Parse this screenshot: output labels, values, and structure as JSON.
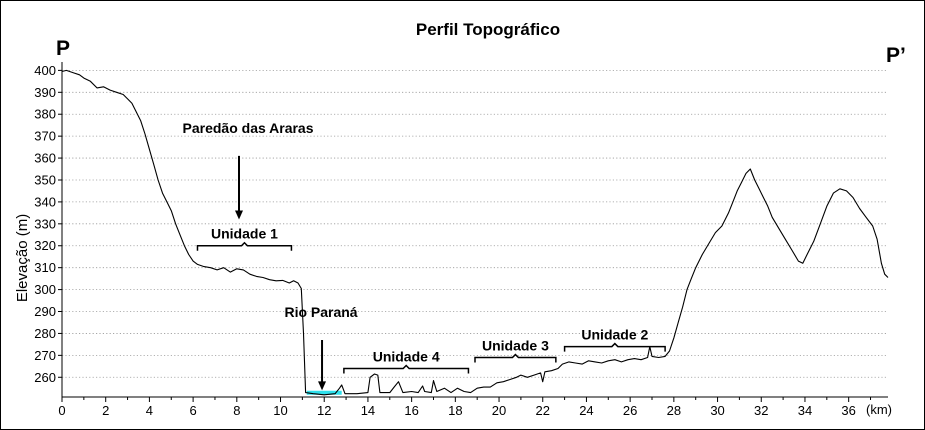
{
  "chart_data": {
    "type": "line",
    "title": "Perfil Topográfico",
    "ylabel": "Elevação (m)",
    "xlabel": "",
    "x_unit_label": "(km)",
    "xlim": [
      0,
      37.8
    ],
    "ylim": [
      251,
      402
    ],
    "x_ticks": [
      0,
      2,
      4,
      6,
      8,
      10,
      12,
      14,
      16,
      18,
      20,
      22,
      24,
      26,
      28,
      30,
      32,
      34,
      36
    ],
    "y_ticks": [
      260,
      270,
      280,
      290,
      300,
      310,
      320,
      330,
      340,
      350,
      360,
      370,
      380,
      390,
      400
    ],
    "grid": "horizontal dotted",
    "start_point_label": "P",
    "end_point_label": "P’",
    "series": [
      {
        "color": "#000000",
        "points": [
          [
            0.0,
            399.5
          ],
          [
            0.2,
            400
          ],
          [
            0.5,
            399
          ],
          [
            0.8,
            398
          ],
          [
            1.0,
            396.5
          ],
          [
            1.3,
            395
          ],
          [
            1.6,
            392
          ],
          [
            1.9,
            392.5
          ],
          [
            2.2,
            391
          ],
          [
            2.5,
            390
          ],
          [
            2.8,
            389
          ],
          [
            3.0,
            387
          ],
          [
            3.2,
            385
          ],
          [
            3.4,
            381
          ],
          [
            3.6,
            377
          ],
          [
            3.8,
            371
          ],
          [
            4.0,
            364
          ],
          [
            4.2,
            357
          ],
          [
            4.4,
            350
          ],
          [
            4.6,
            344
          ],
          [
            4.8,
            340
          ],
          [
            5.0,
            336
          ],
          [
            5.2,
            330
          ],
          [
            5.4,
            325
          ],
          [
            5.6,
            320
          ],
          [
            5.8,
            316
          ],
          [
            6.0,
            313
          ],
          [
            6.2,
            311.5
          ],
          [
            6.5,
            310.5
          ],
          [
            6.8,
            310
          ],
          [
            7.1,
            309
          ],
          [
            7.4,
            310
          ],
          [
            7.7,
            308
          ],
          [
            8.0,
            309.5
          ],
          [
            8.3,
            309
          ],
          [
            8.6,
            307
          ],
          [
            8.9,
            306
          ],
          [
            9.2,
            305.5
          ],
          [
            9.5,
            304.5
          ],
          [
            9.8,
            304
          ],
          [
            10.1,
            304.2
          ],
          [
            10.4,
            303
          ],
          [
            10.6,
            304
          ],
          [
            10.8,
            303
          ],
          [
            10.95,
            300.5
          ],
          [
            11.05,
            280
          ],
          [
            11.15,
            253
          ],
          [
            11.5,
            252.5
          ],
          [
            12.0,
            252
          ],
          [
            12.5,
            252.5
          ],
          [
            12.7,
            255
          ],
          [
            12.8,
            256.5
          ],
          [
            12.95,
            252.5
          ],
          [
            13.5,
            252.5
          ],
          [
            14.0,
            253
          ],
          [
            14.1,
            260
          ],
          [
            14.3,
            261.5
          ],
          [
            14.45,
            261
          ],
          [
            14.55,
            253
          ],
          [
            15.0,
            253
          ],
          [
            15.2,
            255.5
          ],
          [
            15.4,
            258
          ],
          [
            15.6,
            253
          ],
          [
            16.0,
            253.5
          ],
          [
            16.3,
            253
          ],
          [
            16.5,
            256
          ],
          [
            16.6,
            253.5
          ],
          [
            16.9,
            253
          ],
          [
            17.0,
            258.5
          ],
          [
            17.15,
            253.5
          ],
          [
            17.5,
            255
          ],
          [
            17.8,
            253
          ],
          [
            18.1,
            255
          ],
          [
            18.4,
            253.5
          ],
          [
            18.7,
            253
          ],
          [
            19.0,
            255
          ],
          [
            19.3,
            255.5
          ],
          [
            19.6,
            255.5
          ],
          [
            19.9,
            257.5
          ],
          [
            20.2,
            258
          ],
          [
            20.5,
            259
          ],
          [
            20.8,
            260
          ],
          [
            21.0,
            261
          ],
          [
            21.3,
            260
          ],
          [
            21.6,
            261
          ],
          [
            21.9,
            262
          ],
          [
            22.0,
            258
          ],
          [
            22.1,
            262.5
          ],
          [
            22.4,
            263
          ],
          [
            22.7,
            264
          ],
          [
            22.9,
            266
          ],
          [
            23.2,
            267
          ],
          [
            23.5,
            266.5
          ],
          [
            23.8,
            266
          ],
          [
            24.1,
            267.5
          ],
          [
            24.4,
            267
          ],
          [
            24.7,
            266.5
          ],
          [
            25.0,
            267.5
          ],
          [
            25.3,
            268
          ],
          [
            25.6,
            267
          ],
          [
            25.9,
            268
          ],
          [
            26.2,
            268.5
          ],
          [
            26.5,
            268
          ],
          [
            26.8,
            269
          ],
          [
            26.9,
            274
          ],
          [
            27.0,
            269.5
          ],
          [
            27.3,
            269
          ],
          [
            27.6,
            269.5
          ],
          [
            27.8,
            272
          ],
          [
            28.0,
            278
          ],
          [
            28.2,
            285
          ],
          [
            28.4,
            292
          ],
          [
            28.6,
            300
          ],
          [
            28.8,
            305
          ],
          [
            29.0,
            310
          ],
          [
            29.3,
            316
          ],
          [
            29.6,
            321
          ],
          [
            29.9,
            326
          ],
          [
            30.2,
            329
          ],
          [
            30.5,
            335
          ],
          [
            30.7,
            340
          ],
          [
            30.9,
            345
          ],
          [
            31.1,
            349
          ],
          [
            31.3,
            353
          ],
          [
            31.5,
            355
          ],
          [
            31.7,
            350
          ],
          [
            31.9,
            346
          ],
          [
            32.1,
            342
          ],
          [
            32.3,
            338
          ],
          [
            32.5,
            333
          ],
          [
            32.8,
            328
          ],
          [
            33.1,
            323
          ],
          [
            33.4,
            318
          ],
          [
            33.7,
            313
          ],
          [
            33.9,
            312
          ],
          [
            34.1,
            316
          ],
          [
            34.4,
            322
          ],
          [
            34.7,
            330
          ],
          [
            35.0,
            338
          ],
          [
            35.3,
            344
          ],
          [
            35.6,
            346
          ],
          [
            35.9,
            345
          ],
          [
            36.2,
            342
          ],
          [
            36.5,
            337
          ],
          [
            36.8,
            333
          ],
          [
            37.1,
            329
          ],
          [
            37.3,
            323
          ],
          [
            37.5,
            312
          ],
          [
            37.65,
            307
          ],
          [
            37.8,
            305.5
          ]
        ]
      }
    ],
    "river": {
      "label": "Rio Paraná",
      "color": "#2fe0ec",
      "x_range": [
        11.2,
        12.8
      ],
      "y": 252.5
    },
    "annotations": [
      {
        "label": "Paredão das Araras",
        "arrow_x": 8.1,
        "arrow_from_y": 361,
        "arrow_to_y": 332
      },
      {
        "label": "Rio Paraná",
        "arrow_x": 11.9,
        "arrow_from_y": 277,
        "arrow_to_y": 254
      }
    ],
    "units": [
      {
        "label": "Unidade 1",
        "x_from": 6.2,
        "x_to": 10.5,
        "y": 320
      },
      {
        "label": "Unidade 4",
        "x_from": 12.9,
        "x_to": 18.6,
        "y": 264
      },
      {
        "label": "Unidade 3",
        "x_from": 18.9,
        "x_to": 22.6,
        "y": 269
      },
      {
        "label": "Unidade 2",
        "x_from": 23.0,
        "x_to": 27.6,
        "y": 274
      }
    ]
  }
}
